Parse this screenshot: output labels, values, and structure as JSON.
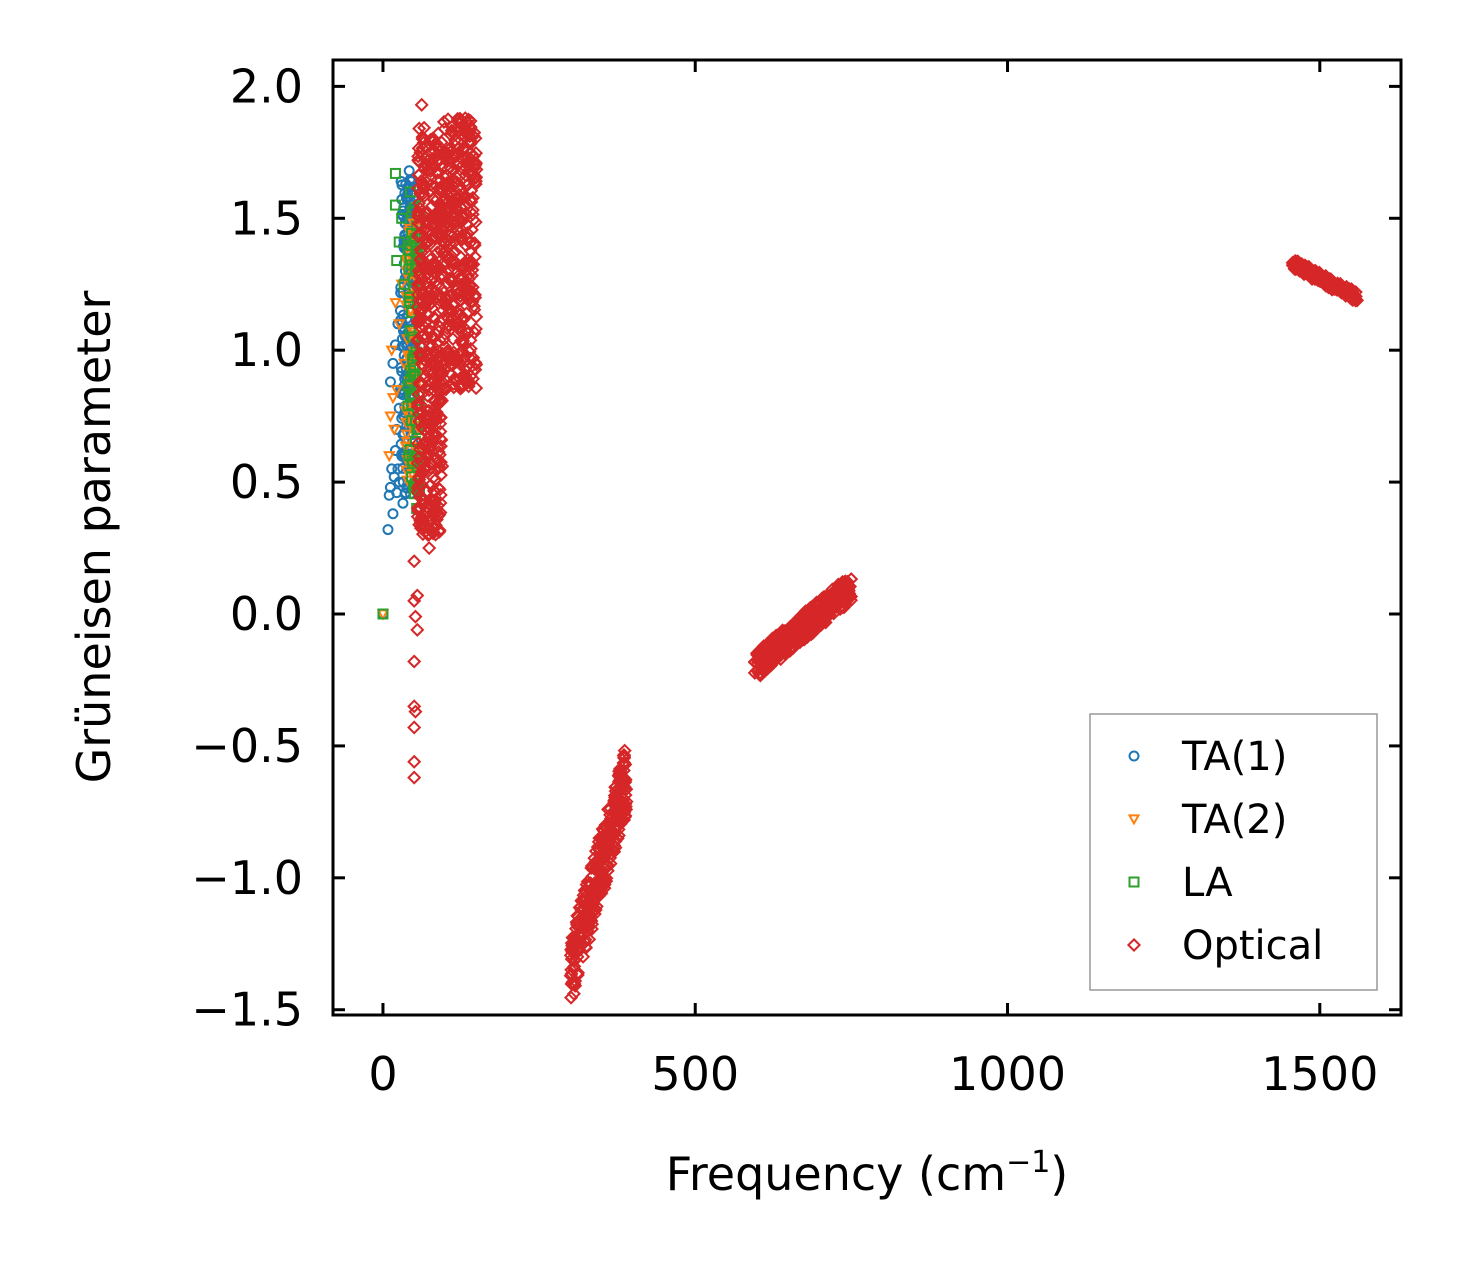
{
  "chart_data": {
    "type": "scatter",
    "title": "",
    "xlabel": "Frequency (cm",
    "xlabel_sup": "−1",
    "xlabel_tail": ")",
    "ylabel": "Grüneisen parameter",
    "xlim": [
      -80,
      1630
    ],
    "ylim": [
      -1.52,
      2.1
    ],
    "x_ticks": [
      0,
      500,
      1000,
      1500
    ],
    "x_tick_labels": [
      "0",
      "500",
      "1000",
      "1500"
    ],
    "y_ticks": [
      -1.5,
      -1.0,
      -0.5,
      0.0,
      0.5,
      1.0,
      1.5,
      2.0
    ],
    "y_tick_labels": [
      "−1.5",
      "−1.0",
      "−0.5",
      "0.0",
      "0.5",
      "1.0",
      "1.5",
      "2.0"
    ],
    "grid": false,
    "legend_position": "lower-right",
    "series": [
      {
        "name": "TA(1)",
        "marker": "circle",
        "color": "#1f77b4",
        "points": [
          [
            0,
            0.0
          ],
          [
            8,
            0.32
          ],
          [
            10,
            0.45
          ],
          [
            12,
            0.48
          ],
          [
            14,
            0.55
          ],
          [
            16,
            0.38
          ],
          [
            18,
            0.52
          ],
          [
            20,
            0.62
          ],
          [
            22,
            0.7
          ],
          [
            24,
            0.55
          ],
          [
            26,
            0.78
          ],
          [
            28,
            0.85
          ],
          [
            30,
            0.92
          ],
          [
            32,
            0.42
          ],
          [
            34,
            0.98
          ],
          [
            36,
            1.05
          ],
          [
            38,
            1.12
          ],
          [
            40,
            1.2
          ],
          [
            42,
            1.28
          ],
          [
            44,
            1.35
          ],
          [
            46,
            1.45
          ],
          [
            48,
            1.55
          ],
          [
            50,
            1.62
          ],
          [
            12,
            0.88
          ],
          [
            16,
            0.95
          ],
          [
            20,
            1.02
          ],
          [
            24,
            1.1
          ],
          [
            28,
            1.15
          ],
          [
            32,
            1.22
          ],
          [
            36,
            1.3
          ],
          [
            40,
            1.38
          ],
          [
            44,
            0.72
          ],
          [
            48,
            0.8
          ],
          [
            42,
            1.68
          ],
          [
            38,
            0.65
          ],
          [
            30,
            0.6
          ],
          [
            26,
            0.5
          ],
          [
            22,
            0.46
          ],
          [
            34,
            0.75
          ],
          [
            46,
            0.9
          ],
          [
            50,
            1.0
          ],
          [
            44,
            1.5
          ],
          [
            40,
            1.58
          ],
          [
            36,
            1.42
          ],
          [
            32,
            0.68
          ]
        ],
        "clusters": [
          {
            "x": [
              28,
              52
            ],
            "y": [
              0.45,
              1.65
            ],
            "n": 160
          }
        ]
      },
      {
        "name": "TA(2)",
        "marker": "triangle-down",
        "color": "#ff7f0e",
        "points": [
          [
            0,
            0.0
          ],
          [
            10,
            0.6
          ],
          [
            12,
            0.75
          ],
          [
            14,
            1.0
          ],
          [
            18,
            0.7
          ],
          [
            22,
            0.85
          ],
          [
            26,
            1.1
          ],
          [
            30,
            1.25
          ],
          [
            34,
            0.95
          ],
          [
            38,
            1.3
          ],
          [
            42,
            1.45
          ],
          [
            46,
            1.2
          ],
          [
            50,
            1.05
          ],
          [
            54,
            0.9
          ],
          [
            56,
            1.35
          ],
          [
            20,
            1.18
          ],
          [
            16,
            0.82
          ]
        ],
        "clusters": [
          {
            "x": [
              36,
              56
            ],
            "y": [
              0.5,
              1.5
            ],
            "n": 70
          }
        ]
      },
      {
        "name": "LA",
        "marker": "square",
        "color": "#2ca02c",
        "points": [
          [
            0,
            0.0
          ],
          [
            20,
            1.67
          ],
          [
            20,
            1.55
          ],
          [
            22,
            1.34
          ],
          [
            26,
            1.41
          ],
          [
            30,
            1.5
          ],
          [
            34,
            1.25
          ],
          [
            40,
            1.38
          ],
          [
            44,
            1.6
          ],
          [
            48,
            1.05
          ],
          [
            50,
            0.85
          ],
          [
            52,
            0.6
          ],
          [
            54,
            0.4
          ],
          [
            56,
            0.7
          ],
          [
            58,
            1.15
          ],
          [
            46,
            0.52
          ],
          [
            42,
            1.2
          ]
        ],
        "clusters": [
          {
            "x": [
              40,
              60
            ],
            "y": [
              0.45,
              1.55
            ],
            "n": 70
          }
        ]
      },
      {
        "name": "Optical",
        "marker": "diamond",
        "color": "#d62728",
        "points": [
          [
            62,
            1.93
          ],
          [
            58,
            1.84
          ],
          [
            66,
            1.8
          ],
          [
            60,
            1.75
          ],
          [
            70,
            1.7
          ],
          [
            72,
            0.3
          ],
          [
            74,
            0.25
          ],
          [
            50,
            0.2
          ],
          [
            55,
            0.07
          ],
          [
            50,
            0.05
          ],
          [
            52,
            -0.01
          ],
          [
            55,
            -0.06
          ],
          [
            50,
            -0.18
          ],
          [
            50,
            -0.35
          ],
          [
            52,
            -0.37
          ],
          [
            50,
            -0.43
          ],
          [
            50,
            -0.56
          ],
          [
            50,
            -0.62
          ],
          [
            60,
            0.4
          ],
          [
            66,
            0.55
          ],
          [
            70,
            0.65
          ]
        ],
        "clusters": [
          {
            "x": [
              55,
              95
            ],
            "y": [
              0.3,
              1.85
            ],
            "n": 420
          },
          {
            "x": [
              95,
              150
            ],
            "y": [
              0.85,
              1.88
            ],
            "n": 380
          },
          {
            "x": [
              300,
              390
            ],
            "y": [
              -1.36,
              -0.62
            ],
            "n": 320,
            "trend": true
          },
          {
            "x": [
              595,
              750
            ],
            "y": [
              -0.2,
              0.1
            ],
            "n": 360,
            "trend": true
          },
          {
            "x": [
              1455,
              1560
            ],
            "y": [
              1.2,
              1.33
            ],
            "n": 160,
            "trend": "down"
          }
        ]
      }
    ]
  }
}
